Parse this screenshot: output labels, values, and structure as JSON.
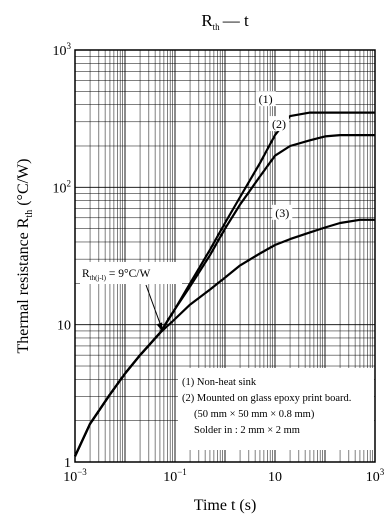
{
  "chart_data": {
    "type": "line",
    "title": "R",
    "title_sub": "th",
    "title_rest": "— t",
    "xlabel": "Time  t  (s)",
    "ylabel": "Thermal resistance  R",
    "ylabel_sub": "th",
    "ylabel_unit": " (°C/W)",
    "x_scale": "log",
    "y_scale": "log",
    "xlim": [
      0.001,
      1000
    ],
    "ylim": [
      1,
      1000
    ],
    "grid": true,
    "x_ticks": [
      {
        "v": 0.001,
        "base": "10",
        "exp": "−3"
      },
      {
        "v": 0.1,
        "base": "10",
        "exp": "−1"
      },
      {
        "v": 10,
        "base": "10",
        "exp": ""
      },
      {
        "v": 1000,
        "base": "10",
        "exp": "3"
      }
    ],
    "y_ticks": [
      {
        "v": 1,
        "base": "1",
        "exp": ""
      },
      {
        "v": 10,
        "base": "10",
        "exp": ""
      },
      {
        "v": 100,
        "base": "10",
        "exp": "2"
      },
      {
        "v": 1000,
        "base": "10",
        "exp": "3"
      }
    ],
    "series": [
      {
        "name": "(1)",
        "x": [
          0.001,
          0.002,
          0.005,
          0.01,
          0.02,
          0.05,
          0.1,
          0.2,
          0.5,
          1,
          2,
          5,
          10,
          20,
          50,
          100,
          1000
        ],
        "y": [
          1.1,
          1.9,
          3.1,
          4.4,
          6.0,
          8.7,
          13,
          20,
          35,
          55,
          85,
          150,
          240,
          330,
          350,
          350,
          350
        ]
      },
      {
        "name": "(2)",
        "x": [
          0.001,
          0.002,
          0.005,
          0.01,
          0.02,
          0.05,
          0.1,
          0.2,
          0.5,
          1,
          2,
          5,
          10,
          20,
          50,
          100,
          200,
          1000
        ],
        "y": [
          1.1,
          1.9,
          3.1,
          4.4,
          6.0,
          8.7,
          13,
          19,
          32,
          50,
          75,
          120,
          170,
          200,
          220,
          235,
          240,
          240
        ]
      },
      {
        "name": "(3)",
        "x": [
          0.001,
          0.002,
          0.005,
          0.01,
          0.02,
          0.05,
          0.1,
          0.2,
          0.5,
          1,
          2,
          5,
          10,
          20,
          50,
          100,
          200,
          500,
          1000
        ],
        "y": [
          1.1,
          1.9,
          3.1,
          4.4,
          6.0,
          8.7,
          11,
          14,
          18,
          22,
          27,
          33,
          38,
          42,
          47,
          51,
          55,
          58,
          58
        ]
      }
    ],
    "series_labels": [
      {
        "text": "(1)",
        "x": 6.5,
        "y": 410
      },
      {
        "text": "(2)",
        "x": 12,
        "y": 270
      },
      {
        "text": "(3)",
        "x": 14,
        "y": 61
      }
    ],
    "annotation": {
      "prefix": "R",
      "sub": "th(j-l)",
      "rest": " = 9°C/W",
      "point": [
        0.055,
        9
      ]
    },
    "legend": [
      "(1) Non-heat sink",
      "(2) Mounted on glass epoxy print board.",
      "(50 mm × 50 mm × 0.8 mm)",
      "Solder in : 2 mm × 2 mm"
    ],
    "colors": {
      "line": "#000000",
      "grid": "#000000",
      "background": "#ffffff"
    }
  }
}
